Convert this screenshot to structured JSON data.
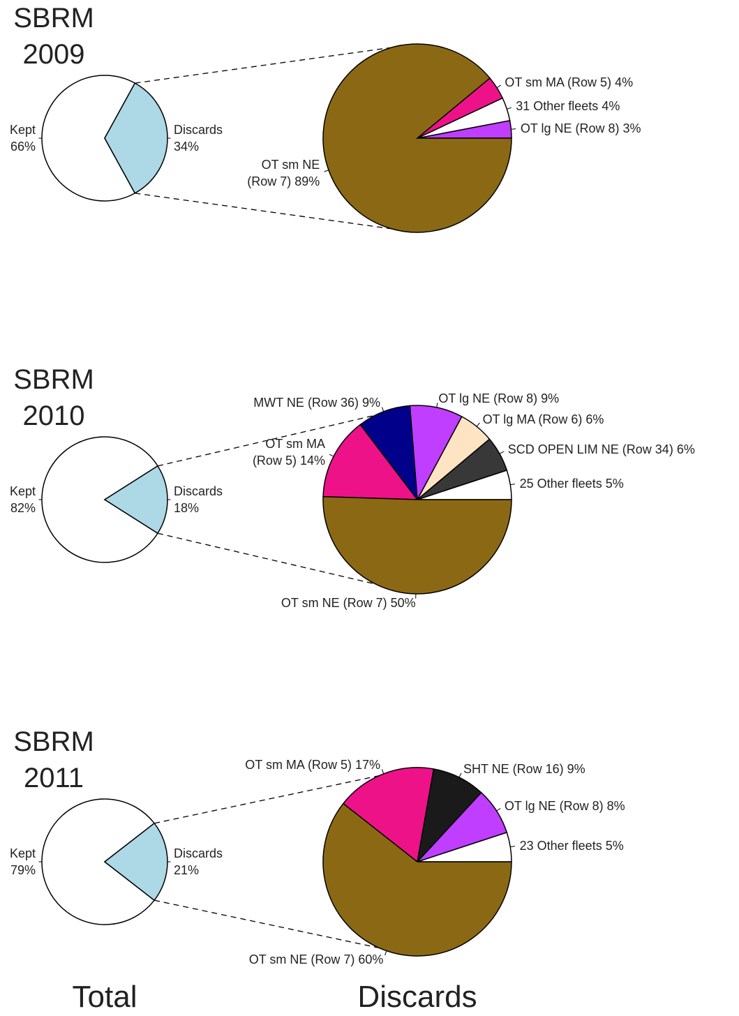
{
  "column_labels": [
    "Total",
    "Discards"
  ],
  "chart_data": [
    {
      "type": "pie",
      "title": [
        "SBRM",
        "2009"
      ],
      "categories": [
        "Kept",
        "Discards"
      ],
      "values": [
        66,
        34
      ],
      "value_labels": [
        "66%",
        "34%"
      ],
      "colors": [
        "#ffffff",
        "#add8e6"
      ]
    },
    {
      "type": "pie",
      "categories": [
        "OT lg NE (Row 8)",
        "31 Other fleets",
        "OT sm MA (Row 5)",
        "OT sm NE\n(Row 7)"
      ],
      "values": [
        3,
        4,
        4,
        89
      ],
      "value_labels": [
        "3%",
        "4%",
        "4%",
        "89%"
      ],
      "colors": [
        "#bf3eff",
        "#ffffff",
        "#ee1289",
        "#8b6914"
      ]
    },
    {
      "type": "pie",
      "title": [
        "SBRM",
        "2010"
      ],
      "categories": [
        "Kept",
        "Discards"
      ],
      "values": [
        82,
        18
      ],
      "value_labels": [
        "82%",
        "18%"
      ],
      "colors": [
        "#ffffff",
        "#add8e6"
      ]
    },
    {
      "type": "pie",
      "categories": [
        "25 Other fleets",
        "SCD OPEN LIM NE (Row 34)",
        "OT lg MA (Row 6)",
        "OT lg NE (Row 8)",
        "MWT NE (Row 36)",
        "OT sm MA\n(Row 5)",
        "OT sm NE (Row 7)"
      ],
      "values": [
        5,
        6,
        6,
        9,
        9,
        14,
        50
      ],
      "value_labels": [
        "5%",
        "6%",
        "6%",
        "9%",
        "9%",
        "14%",
        "50%"
      ],
      "colors": [
        "#ffffff",
        "#383838",
        "#ffe4c4",
        "#bf3eff",
        "#00008b",
        "#ee1289",
        "#8b6914"
      ]
    },
    {
      "type": "pie",
      "title": [
        "SBRM",
        "2011"
      ],
      "categories": [
        "Kept",
        "Discards"
      ],
      "values": [
        79,
        21
      ],
      "value_labels": [
        "79%",
        "21%"
      ],
      "colors": [
        "#ffffff",
        "#add8e6"
      ]
    },
    {
      "type": "pie",
      "categories": [
        "23 Other fleets",
        "OT lg NE (Row 8)",
        "SHT NE (Row 16)",
        "OT sm MA (Row 5)",
        "OT sm NE (Row 7)"
      ],
      "values": [
        5,
        8,
        9,
        17,
        60
      ],
      "value_labels": [
        "5%",
        "8%",
        "9%",
        "17%",
        "60%"
      ],
      "colors": [
        "#ffffff",
        "#bf3eff",
        "#1a1a1a",
        "#ee1289",
        "#8b6914"
      ]
    }
  ]
}
